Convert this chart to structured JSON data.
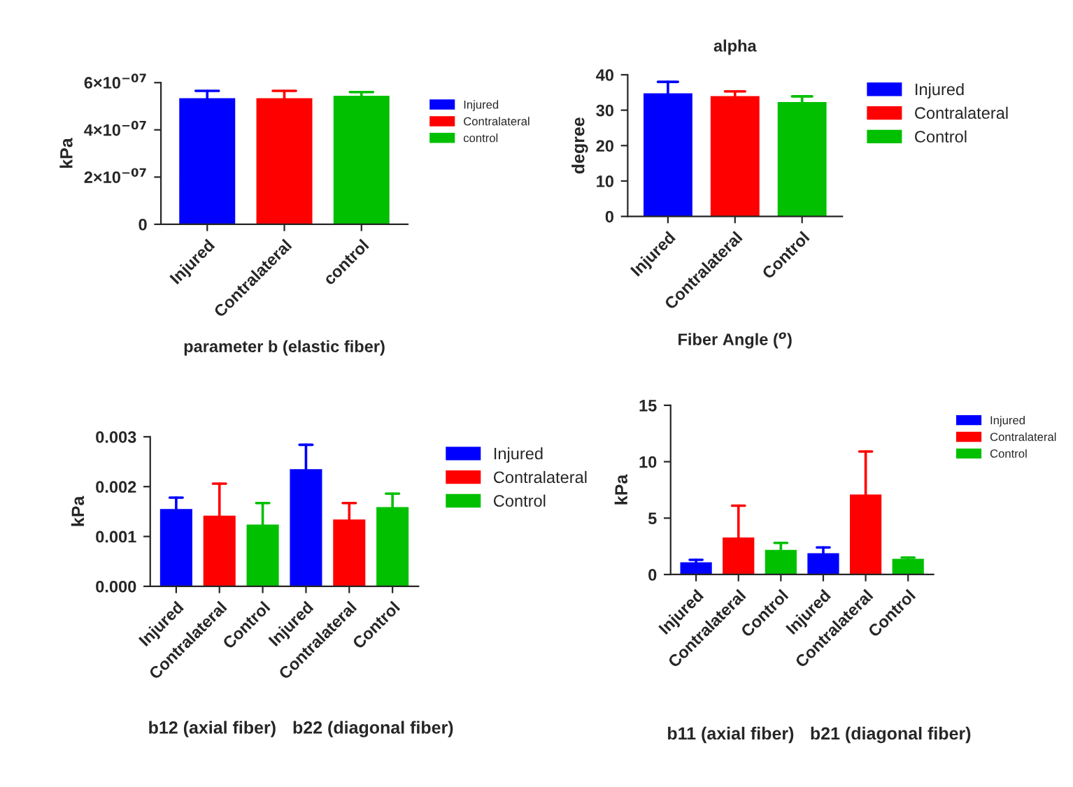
{
  "chart_data": [
    {
      "type": "bar",
      "xlabel": "parameter b (elastic fiber)",
      "ylabel": "kPa",
      "categories": [
        "Injured",
        "Contralateral",
        "control"
      ],
      "series": [
        {
          "name": "Injured",
          "color": "#0000ff",
          "values": [
            5.3e-07,
            null,
            null
          ],
          "errors": [
            [
              5.3e-07,
              5.65e-07
            ],
            null,
            null
          ]
        },
        {
          "name": "Contralateral",
          "color": "#ff0000",
          "values": [
            null,
            5.3e-07,
            null
          ],
          "errors": [
            null,
            [
              5.3e-07,
              5.65e-07
            ],
            null
          ]
        },
        {
          "name": "control",
          "color": "#00c000",
          "values": [
            null,
            null,
            5.4e-07
          ],
          "errors": [
            null,
            null,
            [
              5.4e-07,
              5.6e-07
            ]
          ]
        }
      ],
      "ylim": [
        0,
        6e-07
      ],
      "yticks": [
        0,
        {
          "value": 2e-07,
          "label": "2×10$^{−07}$"
        },
        {
          "value": 4e-07,
          "label": "4×10$^{−07}$"
        },
        {
          "value": 6e-07,
          "label": "6×10$^{−07}$"
        }
      ],
      "grid": false,
      "legend": "right"
    },
    {
      "type": "bar",
      "title": "alpha",
      "xlabel": "Fiber Angle ($^{o}$)",
      "ylabel": "degree",
      "categories": [
        "Injured",
        "Contralateral",
        "Control"
      ],
      "series": [
        {
          "name": "Injured",
          "color": "#0000ff",
          "values": [
            34.5,
            null,
            null
          ],
          "errors": [
            [
              34.5,
              38
            ],
            null,
            null
          ]
        },
        {
          "name": "Contralateral",
          "color": "#ff0000",
          "values": [
            null,
            33.7,
            null
          ],
          "errors": [
            null,
            [
              33.7,
              35.3
            ],
            null
          ]
        },
        {
          "name": "Control",
          "color": "#00c000",
          "values": [
            null,
            null,
            32.0
          ],
          "errors": [
            null,
            null,
            [
              32.0,
              33.9
            ]
          ]
        }
      ],
      "ylim": [
        0,
        40
      ],
      "yticks": [
        0,
        10,
        20,
        30,
        40
      ],
      "grid": false,
      "legend": "right"
    },
    {
      "type": "bar",
      "ylabel": "kPa",
      "categories": [
        "Injured",
        "Contralateral",
        "Control",
        "Injured",
        "Contralateral",
        "Control"
      ],
      "annotations": [
        "b12 (axial fiber)",
        "b22 (diagonal fiber)"
      ],
      "series": [
        {
          "name": "Injured",
          "color": "#0000ff",
          "values": [
            0.00153,
            null,
            null,
            0.00233,
            null,
            null
          ],
          "errors": [
            [
              0.00153,
              0.00178
            ],
            null,
            null,
            [
              0.00233,
              0.00284
            ],
            null,
            null
          ]
        },
        {
          "name": "Contralateral",
          "color": "#ff0000",
          "values": [
            null,
            0.0014,
            null,
            null,
            0.00132,
            null
          ],
          "errors": [
            null,
            [
              0.0014,
              0.00206
            ],
            null,
            null,
            [
              0.00132,
              0.00167
            ],
            null
          ]
        },
        {
          "name": "Control",
          "color": "#00c000",
          "values": [
            null,
            null,
            0.00122,
            null,
            null,
            0.00157
          ],
          "errors": [
            null,
            null,
            [
              0.00122,
              0.00167
            ],
            null,
            null,
            [
              0.00157,
              0.00186
            ]
          ]
        }
      ],
      "ylim": [
        0,
        0.003
      ],
      "yticks": [
        {
          "value": 0,
          "label": "0.000"
        },
        {
          "value": 0.001,
          "label": "0.001"
        },
        {
          "value": 0.002,
          "label": "0.002"
        },
        {
          "value": 0.003,
          "label": "0.003"
        }
      ],
      "grid": false,
      "legend": "right"
    },
    {
      "type": "bar",
      "ylabel": "kPa",
      "categories": [
        "Injured",
        "Contralateral",
        "Control",
        "Injured",
        "Contralateral",
        "Control"
      ],
      "annotations": [
        "b11 (axial fiber)",
        "b21 (diagonal fiber)"
      ],
      "series": [
        {
          "name": "Injured",
          "color": "#0000ff",
          "values": [
            1.0,
            null,
            null,
            1.8,
            null,
            null
          ],
          "errors": [
            [
              1.0,
              1.3
            ],
            null,
            null,
            [
              1.8,
              2.4
            ],
            null,
            null
          ]
        },
        {
          "name": "Contralateral",
          "color": "#ff0000",
          "values": [
            null,
            3.2,
            null,
            null,
            7.0,
            null
          ],
          "errors": [
            null,
            [
              3.2,
              6.1
            ],
            null,
            null,
            [
              7.0,
              10.9
            ],
            null
          ]
        },
        {
          "name": "Control",
          "color": "#00c000",
          "values": [
            null,
            null,
            2.1,
            null,
            null,
            1.3
          ],
          "errors": [
            null,
            null,
            [
              2.1,
              2.8
            ],
            null,
            null,
            [
              1.3,
              1.5
            ]
          ]
        }
      ],
      "ylim": [
        0,
        15
      ],
      "yticks": [
        0,
        5,
        10,
        15
      ],
      "grid": false,
      "legend": "top right"
    }
  ]
}
